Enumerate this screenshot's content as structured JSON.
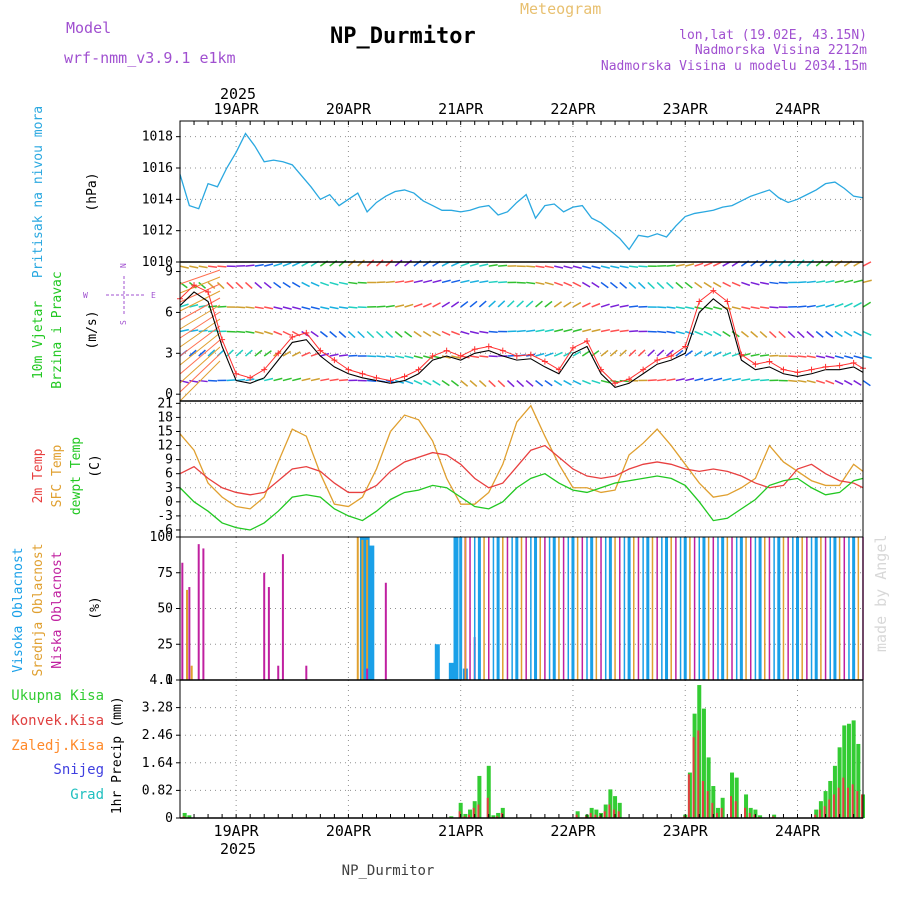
{
  "header": {
    "model_label": "Model",
    "model_name": "wrf-nmm_v3.9.1 e1km",
    "title": "NP_Durmitor",
    "subtitle": "Meteogram",
    "lonlat": "lon,lat (19.02E, 43.15N)",
    "elevation": "Nadmorska Visina 2212m",
    "model_elevation": "Nadmorska Visina u modelu 2034.15m",
    "footer": "NP_Durmitor",
    "credit": "made by Angel",
    "year": "2025"
  },
  "colors": {
    "pressure": "#2aa8e0",
    "wind_speed": "#000000",
    "wind_gust": "#ff3030",
    "t2m": "#e84040",
    "tsfc": "#e0a030",
    "dewpt": "#22c822",
    "cloud_high": "#1aa0e8",
    "cloud_mid": "#e0a030",
    "cloud_low": "#c020a0",
    "precip_total": "#33cc33",
    "precip_conv": "#e04040",
    "precip_stratiform": "#ff8a2a",
    "snow": "#4040e0",
    "hail": "#20c0c0",
    "grid": "#909090"
  },
  "chart_data": [
    {
      "id": "pressure",
      "type": "line",
      "ylabel_main": "Pritisak na nivou mora",
      "unit": "(hPa)",
      "x_unit": "hours from 2025-04-18 12:00 UTC",
      "ylim": [
        1010,
        1019
      ],
      "yticks": [
        1010,
        1012,
        1014,
        1016,
        1018
      ],
      "x": [
        0,
        2,
        4,
        6,
        8,
        10,
        12,
        14,
        16,
        18,
        20,
        22,
        24,
        26,
        28,
        30,
        32,
        34,
        36,
        38,
        40,
        42,
        44,
        46,
        48,
        50,
        52,
        54,
        56,
        58,
        60,
        62,
        64,
        66,
        68,
        70,
        72,
        74,
        76,
        78,
        80,
        82,
        84,
        86,
        88,
        90,
        92,
        94,
        96,
        98,
        100,
        102,
        104,
        106,
        108,
        110,
        112,
        114,
        116,
        118,
        120,
        122,
        124,
        126,
        128,
        130,
        132,
        134,
        136,
        138,
        140,
        142,
        144,
        146
      ],
      "values": [
        1015.6,
        1013.6,
        1013.4,
        1015.0,
        1014.8,
        1016.0,
        1017.0,
        1018.2,
        1017.4,
        1016.4,
        1016.5,
        1016.4,
        1016.2,
        1015.5,
        1014.8,
        1014.0,
        1014.3,
        1013.6,
        1014.0,
        1014.4,
        1013.2,
        1013.8,
        1014.2,
        1014.5,
        1014.6,
        1014.4,
        1013.9,
        1013.6,
        1013.3,
        1013.3,
        1013.2,
        1013.3,
        1013.5,
        1013.6,
        1013.0,
        1013.2,
        1013.8,
        1014.3,
        1012.8,
        1013.6,
        1013.7,
        1013.2,
        1013.5,
        1013.6,
        1012.8,
        1012.5,
        1012.0,
        1011.5,
        1010.8,
        1011.7,
        1011.6,
        1011.8,
        1011.6,
        1012.3,
        1012.9,
        1013.1,
        1013.2,
        1013.3,
        1013.5,
        1013.6,
        1013.9,
        1014.2,
        1014.4,
        1014.6,
        1014.1,
        1013.8,
        1014.0,
        1014.3,
        1014.6,
        1015.0,
        1015.1,
        1014.7,
        1014.2,
        1014.1
      ]
    },
    {
      "id": "wind",
      "type": "line",
      "ylabel_main": "10m Vjetar",
      "ylabel_sub": "Brzina i Pravac",
      "unit": "(m/s)",
      "compass": {
        "n": "N",
        "s": "S",
        "w": "W",
        "e": "E"
      },
      "ylim": [
        -0.5,
        9.7
      ],
      "yticks": [
        0,
        3,
        6,
        9
      ],
      "barb_levels": [
        1,
        2.8,
        4.6,
        6.4,
        8.2,
        9.4
      ],
      "x": [
        0,
        3,
        6,
        9,
        12,
        15,
        18,
        21,
        24,
        27,
        30,
        33,
        36,
        39,
        42,
        45,
        48,
        51,
        54,
        57,
        60,
        63,
        66,
        69,
        72,
        75,
        78,
        81,
        84,
        87,
        90,
        93,
        96,
        99,
        102,
        105,
        108,
        111,
        114,
        117,
        120,
        123,
        126,
        129,
        132,
        135,
        138,
        141,
        144,
        146
      ],
      "speed": [
        6.5,
        7.5,
        6.8,
        3.5,
        1.0,
        0.8,
        1.2,
        2.5,
        3.8,
        4.0,
        2.8,
        2.0,
        1.5,
        1.2,
        1.0,
        0.8,
        1.0,
        1.5,
        2.5,
        2.8,
        2.5,
        3.0,
        3.2,
        2.8,
        2.5,
        2.6,
        2.0,
        1.5,
        3.0,
        3.5,
        1.5,
        0.5,
        0.8,
        1.5,
        2.2,
        2.5,
        3.0,
        6.0,
        7.0,
        6.2,
        2.5,
        1.8,
        2.0,
        1.5,
        1.3,
        1.5,
        1.8,
        1.8,
        2.0,
        1.6
      ],
      "gust": [
        7.0,
        8.0,
        7.5,
        4.0,
        1.5,
        1.2,
        1.8,
        3.0,
        4.2,
        4.5,
        3.2,
        2.5,
        1.8,
        1.5,
        1.2,
        1.0,
        1.3,
        1.8,
        2.8,
        3.2,
        2.8,
        3.3,
        3.5,
        3.2,
        2.8,
        2.9,
        2.4,
        1.8,
        3.4,
        3.9,
        1.8,
        0.8,
        1.1,
        1.8,
        2.5,
        2.8,
        3.5,
        6.8,
        7.6,
        6.8,
        2.9,
        2.2,
        2.4,
        1.8,
        1.6,
        1.8,
        2.0,
        2.1,
        2.3,
        1.9
      ]
    },
    {
      "id": "temperature",
      "type": "line",
      "ylabel_t2m": "2m Temp",
      "ylabel_tsfc": "SFC Temp",
      "ylabel_dew": "dewpt Temp",
      "unit": "(C)",
      "ylim": [
        -7.5,
        21.5
      ],
      "yticks": [
        -6,
        -3,
        0,
        3,
        6,
        9,
        12,
        15,
        18,
        21
      ],
      "x": [
        0,
        3,
        6,
        9,
        12,
        15,
        18,
        21,
        24,
        27,
        30,
        33,
        36,
        39,
        42,
        45,
        48,
        51,
        54,
        57,
        60,
        63,
        66,
        69,
        72,
        75,
        78,
        81,
        84,
        87,
        90,
        93,
        96,
        99,
        102,
        105,
        108,
        111,
        114,
        117,
        120,
        123,
        126,
        129,
        132,
        135,
        138,
        141,
        144,
        146
      ],
      "t2m": [
        6.0,
        7.5,
        5.0,
        3.0,
        2.0,
        1.5,
        2.0,
        4.5,
        7.0,
        7.5,
        6.5,
        4.0,
        2.0,
        2.0,
        3.5,
        6.5,
        8.5,
        9.5,
        10.5,
        10.0,
        8.0,
        5.0,
        3.0,
        4.0,
        7.5,
        11.0,
        12.0,
        9.5,
        7.0,
        5.5,
        5.0,
        5.5,
        7.0,
        8.0,
        8.5,
        8.0,
        7.0,
        6.5,
        7.0,
        6.5,
        5.5,
        4.0,
        3.0,
        3.5,
        7.0,
        8.0,
        6.0,
        4.5,
        4.0,
        3.0
      ],
      "tsfc": [
        14.5,
        11.0,
        4.0,
        1.0,
        -1.0,
        -1.5,
        1.0,
        8.5,
        15.5,
        14.0,
        6.0,
        -0.5,
        -1.0,
        1.0,
        7.0,
        15.0,
        18.5,
        17.5,
        13.0,
        5.0,
        -0.5,
        -0.5,
        2.0,
        8.0,
        17.0,
        20.5,
        14.0,
        8.0,
        3.0,
        3.0,
        2.0,
        2.5,
        10.0,
        12.5,
        15.5,
        12.0,
        8.0,
        4.0,
        1.0,
        1.5,
        3.0,
        5.0,
        12.0,
        8.5,
        6.5,
        4.5,
        3.5,
        3.5,
        8.0,
        6.5
      ],
      "dewpt": [
        3.0,
        0.0,
        -2.0,
        -4.5,
        -5.5,
        -6.0,
        -4.5,
        -2.0,
        1.0,
        1.5,
        1.0,
        -1.5,
        -3.0,
        -4.0,
        -2.0,
        0.5,
        2.0,
        2.5,
        3.5,
        3.0,
        1.0,
        -1.0,
        -1.5,
        0.0,
        3.0,
        5.0,
        6.0,
        4.0,
        2.5,
        2.0,
        3.0,
        4.0,
        4.5,
        5.0,
        5.5,
        5.0,
        3.5,
        0.0,
        -4.0,
        -3.5,
        -1.5,
        0.5,
        3.5,
        4.5,
        5.0,
        3.0,
        1.5,
        2.0,
        4.5,
        5.0
      ]
    },
    {
      "id": "clouds",
      "type": "bar",
      "ylabel_high": "Visoka Oblacnost",
      "ylabel_mid": "Srednja Oblacnost",
      "ylabel_low": "Niska Oblacnost",
      "unit": "(%)",
      "ylim": [
        0,
        100
      ],
      "yticks": [
        0,
        25,
        50,
        75,
        100
      ],
      "low_bars": [
        [
          0.5,
          82
        ],
        [
          2,
          65
        ],
        [
          4,
          95
        ],
        [
          5,
          92
        ],
        [
          18,
          75
        ],
        [
          19,
          65
        ],
        [
          21,
          10
        ],
        [
          22,
          88
        ],
        [
          27,
          10
        ],
        [
          40,
          8
        ],
        [
          44,
          68
        ],
        [
          61,
          100
        ],
        [
          63,
          30
        ]
      ],
      "mid_bars": [
        [
          1.5,
          63
        ],
        [
          2.5,
          10
        ],
        [
          38,
          100
        ],
        [
          39,
          98
        ],
        [
          40,
          98
        ]
      ],
      "high_bars": [
        [
          39,
          100
        ],
        [
          40,
          100
        ],
        [
          41,
          94
        ],
        [
          55,
          25
        ],
        [
          58,
          12
        ],
        [
          59,
          100
        ],
        [
          61,
          8
        ]
      ],
      "overcast_from": 60,
      "overcast_to": 146
    },
    {
      "id": "precip",
      "type": "bar",
      "ylabel_total": "Ukupna Kisa",
      "ylabel_conv": "Konvek.Kisa",
      "ylabel_strat": "Zaledj.Kisa",
      "ylabel_snow": "Snijeg",
      "ylabel_hail": "Grad",
      "ylabel_main": "1hr Precip",
      "unit": "(mm)",
      "ylim": [
        0,
        4.1
      ],
      "yticks": [
        0,
        0.82,
        1.64,
        2.46,
        3.28,
        4.1
      ],
      "x": [
        1,
        2,
        58,
        60,
        61,
        62,
        63,
        64,
        66,
        67,
        68,
        69,
        85,
        87,
        88,
        89,
        90,
        91,
        92,
        93,
        94,
        108,
        109,
        110,
        111,
        112,
        113,
        114,
        115,
        116,
        118,
        119,
        121,
        122,
        123,
        124,
        127,
        136,
        137,
        138,
        139,
        140,
        141,
        142,
        143,
        144,
        145,
        146
      ],
      "total": [
        0.15,
        0.08,
        0.05,
        0.45,
        0.12,
        0.25,
        0.5,
        1.25,
        1.55,
        0.08,
        0.15,
        0.3,
        0.2,
        0.1,
        0.3,
        0.25,
        0.15,
        0.4,
        0.85,
        0.65,
        0.45,
        0.1,
        1.35,
        3.1,
        3.95,
        3.25,
        1.8,
        0.95,
        0.3,
        0.6,
        1.35,
        1.2,
        0.7,
        0.3,
        0.25,
        0.08,
        0.1,
        0.25,
        0.5,
        0.8,
        1.1,
        1.55,
        2.1,
        2.75,
        2.8,
        2.9,
        2.2,
        0.7
      ],
      "conv": [
        0.05,
        0.02,
        0.02,
        0.2,
        0.05,
        0.1,
        0.3,
        0.4,
        0.6,
        0.03,
        0.05,
        0.15,
        0.1,
        0.05,
        0.15,
        0.1,
        0.06,
        0.2,
        0.4,
        0.25,
        0.2,
        0.05,
        1.3,
        2.4,
        2.6,
        1.1,
        0.8,
        0.45,
        0.15,
        0.3,
        0.65,
        0.5,
        0.3,
        0.15,
        0.1,
        0.03,
        0.05,
        0.1,
        0.25,
        0.35,
        0.55,
        0.7,
        0.9,
        1.2,
        0.9,
        1.0,
        0.8,
        0.7
      ]
    }
  ],
  "x_axis": {
    "top_labels": [
      "19APR",
      "20APR",
      "21APR",
      "22APR",
      "23APR",
      "24APR"
    ],
    "bottom_labels": [
      "19APR",
      "20APR",
      "21APR",
      "22APR",
      "23APR",
      "24APR"
    ]
  }
}
